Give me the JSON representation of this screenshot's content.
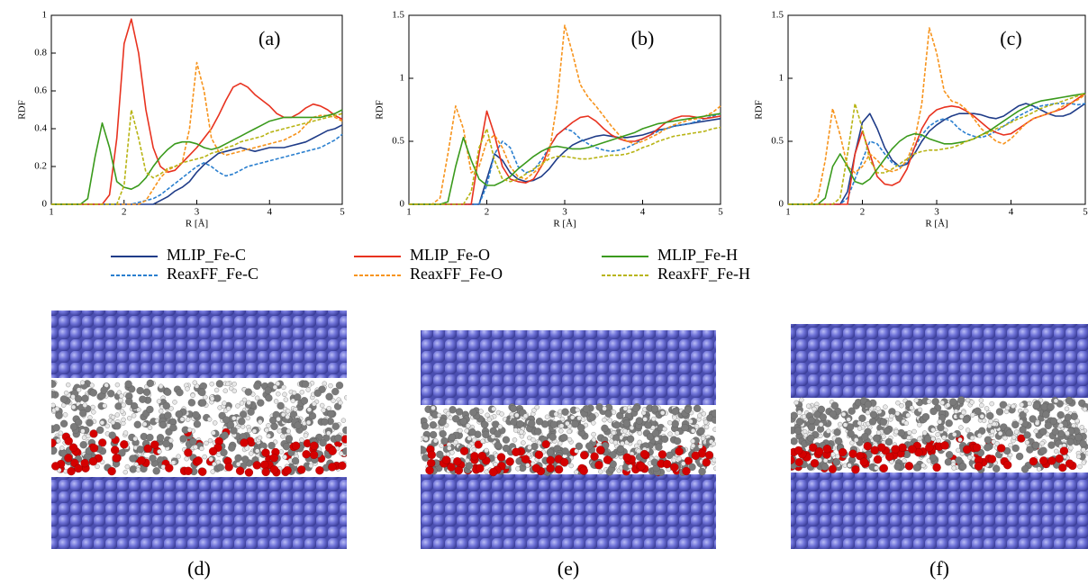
{
  "chart_data": [
    {
      "type": "line",
      "annotation": "(a)",
      "xlabel": "R [Å]",
      "ylabel": "RDF",
      "xlim": [
        1,
        5
      ],
      "xticks": [
        1,
        2,
        3,
        4,
        5
      ],
      "ylim": [
        0,
        1
      ],
      "yticks": [
        0,
        0.2,
        0.4,
        0.6,
        0.8,
        1
      ],
      "x": [
        1.0,
        1.1,
        1.2,
        1.3,
        1.4,
        1.5,
        1.6,
        1.7,
        1.8,
        1.9,
        2.0,
        2.1,
        2.2,
        2.3,
        2.4,
        2.5,
        2.6,
        2.7,
        2.8,
        2.9,
        3.0,
        3.1,
        3.2,
        3.3,
        3.4,
        3.5,
        3.6,
        3.7,
        3.8,
        3.9,
        4.0,
        4.1,
        4.2,
        4.3,
        4.4,
        4.5,
        4.6,
        4.7,
        4.8,
        4.9,
        5.0
      ],
      "series": [
        {
          "name": "MLIP_Fe-C",
          "color": "#1f3c88",
          "dash": false,
          "values": [
            0,
            0,
            0,
            0,
            0,
            0,
            0,
            0,
            0,
            0,
            0,
            0,
            0,
            0,
            0,
            0.02,
            0.04,
            0.07,
            0.09,
            0.12,
            0.17,
            0.21,
            0.24,
            0.27,
            0.28,
            0.29,
            0.3,
            0.29,
            0.28,
            0.29,
            0.3,
            0.3,
            0.3,
            0.31,
            0.32,
            0.33,
            0.35,
            0.37,
            0.39,
            0.4,
            0.42
          ]
        },
        {
          "name": "ReaxFF_Fe-C",
          "color": "#2a7fcf",
          "dash": true,
          "values": [
            0,
            0,
            0,
            0,
            0,
            0,
            0,
            0,
            0,
            0,
            0,
            0,
            0.01,
            0.02,
            0.03,
            0.05,
            0.08,
            0.11,
            0.14,
            0.17,
            0.2,
            0.22,
            0.2,
            0.17,
            0.15,
            0.16,
            0.18,
            0.2,
            0.21,
            0.22,
            0.23,
            0.24,
            0.25,
            0.26,
            0.27,
            0.28,
            0.29,
            0.3,
            0.32,
            0.34,
            0.37
          ]
        },
        {
          "name": "MLIP_Fe-O",
          "color": "#e8321f",
          "dash": false,
          "values": [
            0,
            0,
            0,
            0,
            0,
            0,
            0,
            0,
            0.05,
            0.35,
            0.85,
            0.98,
            0.8,
            0.5,
            0.3,
            0.2,
            0.17,
            0.18,
            0.22,
            0.26,
            0.3,
            0.35,
            0.4,
            0.47,
            0.55,
            0.62,
            0.64,
            0.62,
            0.58,
            0.55,
            0.52,
            0.48,
            0.46,
            0.46,
            0.48,
            0.51,
            0.53,
            0.52,
            0.5,
            0.47,
            0.45
          ]
        },
        {
          "name": "ReaxFF_Fe-O",
          "color": "#f7941d",
          "dash": true,
          "values": [
            0,
            0,
            0,
            0,
            0,
            0,
            0,
            0,
            0,
            0,
            0,
            0,
            0,
            0.02,
            0.08,
            0.14,
            0.18,
            0.2,
            0.22,
            0.4,
            0.75,
            0.6,
            0.35,
            0.28,
            0.26,
            0.27,
            0.28,
            0.29,
            0.3,
            0.31,
            0.32,
            0.33,
            0.34,
            0.36,
            0.38,
            0.42,
            0.46,
            0.47,
            0.47,
            0.46,
            0.44
          ]
        },
        {
          "name": "MLIP_Fe-H",
          "color": "#3a9a1c",
          "dash": false,
          "values": [
            0,
            0,
            0,
            0,
            0,
            0.03,
            0.25,
            0.43,
            0.3,
            0.12,
            0.09,
            0.08,
            0.1,
            0.14,
            0.2,
            0.25,
            0.29,
            0.32,
            0.33,
            0.33,
            0.32,
            0.3,
            0.29,
            0.3,
            0.32,
            0.34,
            0.36,
            0.38,
            0.4,
            0.42,
            0.44,
            0.45,
            0.46,
            0.46,
            0.46,
            0.46,
            0.46,
            0.46,
            0.47,
            0.48,
            0.5
          ]
        },
        {
          "name": "ReaxFF_Fe-H",
          "color": "#b8b414",
          "dash": true,
          "values": [
            0,
            0,
            0,
            0,
            0,
            0,
            0,
            0,
            0,
            0,
            0.1,
            0.5,
            0.35,
            0.17,
            0.14,
            0.16,
            0.19,
            0.2,
            0.22,
            0.23,
            0.24,
            0.25,
            0.27,
            0.28,
            0.3,
            0.31,
            0.33,
            0.34,
            0.35,
            0.36,
            0.38,
            0.39,
            0.4,
            0.41,
            0.42,
            0.43,
            0.44,
            0.45,
            0.46,
            0.47,
            0.48
          ]
        }
      ]
    },
    {
      "type": "line",
      "annotation": "(b)",
      "xlabel": "R [Å]",
      "ylabel": "RDF",
      "xlim": [
        1,
        5
      ],
      "xticks": [
        1,
        2,
        3,
        4,
        5
      ],
      "ylim": [
        0,
        1.5
      ],
      "yticks": [
        0,
        0.5,
        1,
        1.5
      ],
      "x": [
        1.0,
        1.1,
        1.2,
        1.3,
        1.4,
        1.5,
        1.6,
        1.7,
        1.8,
        1.9,
        2.0,
        2.1,
        2.2,
        2.3,
        2.4,
        2.5,
        2.6,
        2.7,
        2.8,
        2.9,
        3.0,
        3.1,
        3.2,
        3.3,
        3.4,
        3.5,
        3.6,
        3.7,
        3.8,
        3.9,
        4.0,
        4.1,
        4.2,
        4.3,
        4.4,
        4.5,
        4.6,
        4.7,
        4.8,
        4.9,
        5.0
      ],
      "series": [
        {
          "color": "#1f3c88",
          "dash": false,
          "values": [
            0,
            0,
            0,
            0,
            0,
            0,
            0,
            0,
            0,
            0,
            0.2,
            0.4,
            0.35,
            0.25,
            0.2,
            0.18,
            0.19,
            0.22,
            0.28,
            0.36,
            0.42,
            0.47,
            0.5,
            0.52,
            0.54,
            0.55,
            0.54,
            0.53,
            0.53,
            0.54,
            0.55,
            0.57,
            0.59,
            0.6,
            0.62,
            0.63,
            0.64,
            0.65,
            0.66,
            0.67,
            0.68
          ]
        },
        {
          "color": "#2a7fcf",
          "dash": true,
          "values": [
            0,
            0,
            0,
            0,
            0,
            0,
            0,
            0,
            0,
            0,
            0.15,
            0.4,
            0.5,
            0.45,
            0.3,
            0.25,
            0.27,
            0.35,
            0.45,
            0.55,
            0.6,
            0.58,
            0.52,
            0.48,
            0.45,
            0.43,
            0.42,
            0.43,
            0.45,
            0.48,
            0.52,
            0.55,
            0.58,
            0.6,
            0.62,
            0.63,
            0.64,
            0.66,
            0.68,
            0.7,
            0.72
          ]
        },
        {
          "color": "#e8321f",
          "dash": false,
          "values": [
            0,
            0,
            0,
            0,
            0,
            0,
            0,
            0,
            0,
            0.4,
            0.74,
            0.55,
            0.3,
            0.2,
            0.18,
            0.17,
            0.2,
            0.3,
            0.45,
            0.55,
            0.6,
            0.65,
            0.69,
            0.7,
            0.66,
            0.6,
            0.55,
            0.52,
            0.5,
            0.5,
            0.52,
            0.55,
            0.6,
            0.65,
            0.68,
            0.7,
            0.7,
            0.69,
            0.68,
            0.69,
            0.7
          ]
        },
        {
          "color": "#f7941d",
          "dash": true,
          "values": [
            0,
            0,
            0,
            0,
            0.05,
            0.4,
            0.78,
            0.6,
            0.25,
            0.3,
            0.5,
            0.55,
            0.45,
            0.3,
            0.22,
            0.2,
            0.25,
            0.3,
            0.4,
            0.8,
            1.42,
            1.2,
            0.95,
            0.85,
            0.78,
            0.7,
            0.62,
            0.55,
            0.5,
            0.48,
            0.5,
            0.53,
            0.56,
            0.6,
            0.63,
            0.65,
            0.67,
            0.68,
            0.7,
            0.73,
            0.78
          ]
        },
        {
          "color": "#3a9a1c",
          "dash": false,
          "values": [
            0,
            0,
            0,
            0,
            0,
            0.02,
            0.3,
            0.53,
            0.35,
            0.2,
            0.15,
            0.15,
            0.18,
            0.22,
            0.28,
            0.33,
            0.38,
            0.42,
            0.45,
            0.46,
            0.45,
            0.44,
            0.44,
            0.45,
            0.47,
            0.49,
            0.51,
            0.53,
            0.55,
            0.57,
            0.6,
            0.62,
            0.64,
            0.65,
            0.66,
            0.67,
            0.68,
            0.69,
            0.7,
            0.71,
            0.72
          ]
        },
        {
          "color": "#b8b414",
          "dash": true,
          "values": [
            0,
            0,
            0,
            0,
            0,
            0,
            0,
            0,
            0.1,
            0.45,
            0.6,
            0.35,
            0.2,
            0.18,
            0.2,
            0.24,
            0.28,
            0.32,
            0.36,
            0.38,
            0.38,
            0.37,
            0.36,
            0.36,
            0.37,
            0.38,
            0.39,
            0.39,
            0.4,
            0.42,
            0.45,
            0.47,
            0.5,
            0.52,
            0.54,
            0.55,
            0.56,
            0.57,
            0.58,
            0.6,
            0.61
          ]
        }
      ]
    },
    {
      "type": "line",
      "annotation": "(c)",
      "xlabel": "R [Å]",
      "ylabel": "RDF",
      "xlim": [
        1,
        5
      ],
      "xticks": [
        1,
        2,
        3,
        4,
        5
      ],
      "ylim": [
        0,
        1.5
      ],
      "yticks": [
        0,
        0.5,
        1,
        1.5
      ],
      "x": [
        1.0,
        1.1,
        1.2,
        1.3,
        1.4,
        1.5,
        1.6,
        1.7,
        1.8,
        1.9,
        2.0,
        2.1,
        2.2,
        2.3,
        2.4,
        2.5,
        2.6,
        2.7,
        2.8,
        2.9,
        3.0,
        3.1,
        3.2,
        3.3,
        3.4,
        3.5,
        3.6,
        3.7,
        3.8,
        3.9,
        4.0,
        4.1,
        4.2,
        4.3,
        4.4,
        4.5,
        4.6,
        4.7,
        4.8,
        4.9,
        5.0
      ],
      "series": [
        {
          "color": "#1f3c88",
          "dash": false,
          "values": [
            0,
            0,
            0,
            0,
            0,
            0,
            0,
            0,
            0.1,
            0.4,
            0.65,
            0.72,
            0.6,
            0.45,
            0.35,
            0.3,
            0.32,
            0.4,
            0.5,
            0.58,
            0.63,
            0.67,
            0.7,
            0.72,
            0.72,
            0.72,
            0.71,
            0.69,
            0.68,
            0.7,
            0.74,
            0.78,
            0.8,
            0.78,
            0.75,
            0.72,
            0.7,
            0.7,
            0.72,
            0.76,
            0.8
          ]
        },
        {
          "color": "#2a7fcf",
          "dash": true,
          "values": [
            0,
            0,
            0,
            0,
            0,
            0,
            0,
            0,
            0.05,
            0.2,
            0.35,
            0.5,
            0.48,
            0.4,
            0.33,
            0.3,
            0.33,
            0.45,
            0.55,
            0.62,
            0.66,
            0.68,
            0.66,
            0.6,
            0.56,
            0.54,
            0.53,
            0.55,
            0.58,
            0.62,
            0.66,
            0.7,
            0.73,
            0.76,
            0.78,
            0.79,
            0.8,
            0.8,
            0.8,
            0.79,
            0.8
          ]
        },
        {
          "color": "#e8321f",
          "dash": false,
          "values": [
            0,
            0,
            0,
            0,
            0,
            0,
            0,
            0,
            0,
            0.4,
            0.58,
            0.4,
            0.22,
            0.16,
            0.15,
            0.18,
            0.28,
            0.45,
            0.6,
            0.7,
            0.75,
            0.77,
            0.78,
            0.77,
            0.74,
            0.7,
            0.65,
            0.6,
            0.57,
            0.55,
            0.56,
            0.6,
            0.64,
            0.68,
            0.7,
            0.72,
            0.74,
            0.76,
            0.8,
            0.84,
            0.88
          ]
        },
        {
          "color": "#f7941d",
          "dash": true,
          "values": [
            0,
            0,
            0,
            0,
            0.05,
            0.35,
            0.76,
            0.55,
            0.3,
            0.25,
            0.3,
            0.4,
            0.35,
            0.28,
            0.26,
            0.28,
            0.35,
            0.5,
            0.8,
            1.4,
            1.2,
            0.9,
            0.82,
            0.8,
            0.75,
            0.68,
            0.6,
            0.55,
            0.5,
            0.48,
            0.52,
            0.58,
            0.64,
            0.68,
            0.7,
            0.72,
            0.74,
            0.78,
            0.8,
            0.83,
            0.87
          ]
        },
        {
          "color": "#3a9a1c",
          "dash": false,
          "values": [
            0,
            0,
            0,
            0,
            0,
            0.05,
            0.3,
            0.4,
            0.3,
            0.18,
            0.16,
            0.2,
            0.28,
            0.36,
            0.44,
            0.5,
            0.54,
            0.56,
            0.55,
            0.52,
            0.5,
            0.48,
            0.48,
            0.49,
            0.5,
            0.52,
            0.55,
            0.58,
            0.62,
            0.66,
            0.7,
            0.74,
            0.77,
            0.8,
            0.82,
            0.83,
            0.84,
            0.85,
            0.86,
            0.87,
            0.88
          ]
        },
        {
          "color": "#b8b414",
          "dash": true,
          "values": [
            0,
            0,
            0,
            0,
            0,
            0,
            0,
            0.05,
            0.4,
            0.8,
            0.6,
            0.35,
            0.25,
            0.25,
            0.28,
            0.32,
            0.36,
            0.4,
            0.42,
            0.43,
            0.43,
            0.44,
            0.45,
            0.47,
            0.5,
            0.52,
            0.55,
            0.57,
            0.6,
            0.62,
            0.65,
            0.68,
            0.7,
            0.73,
            0.76,
            0.78,
            0.8,
            0.82,
            0.84,
            0.86,
            0.88
          ]
        }
      ]
    }
  ],
  "snapshots": {
    "labels": [
      "(d)",
      "(e)",
      "(f)"
    ]
  }
}
